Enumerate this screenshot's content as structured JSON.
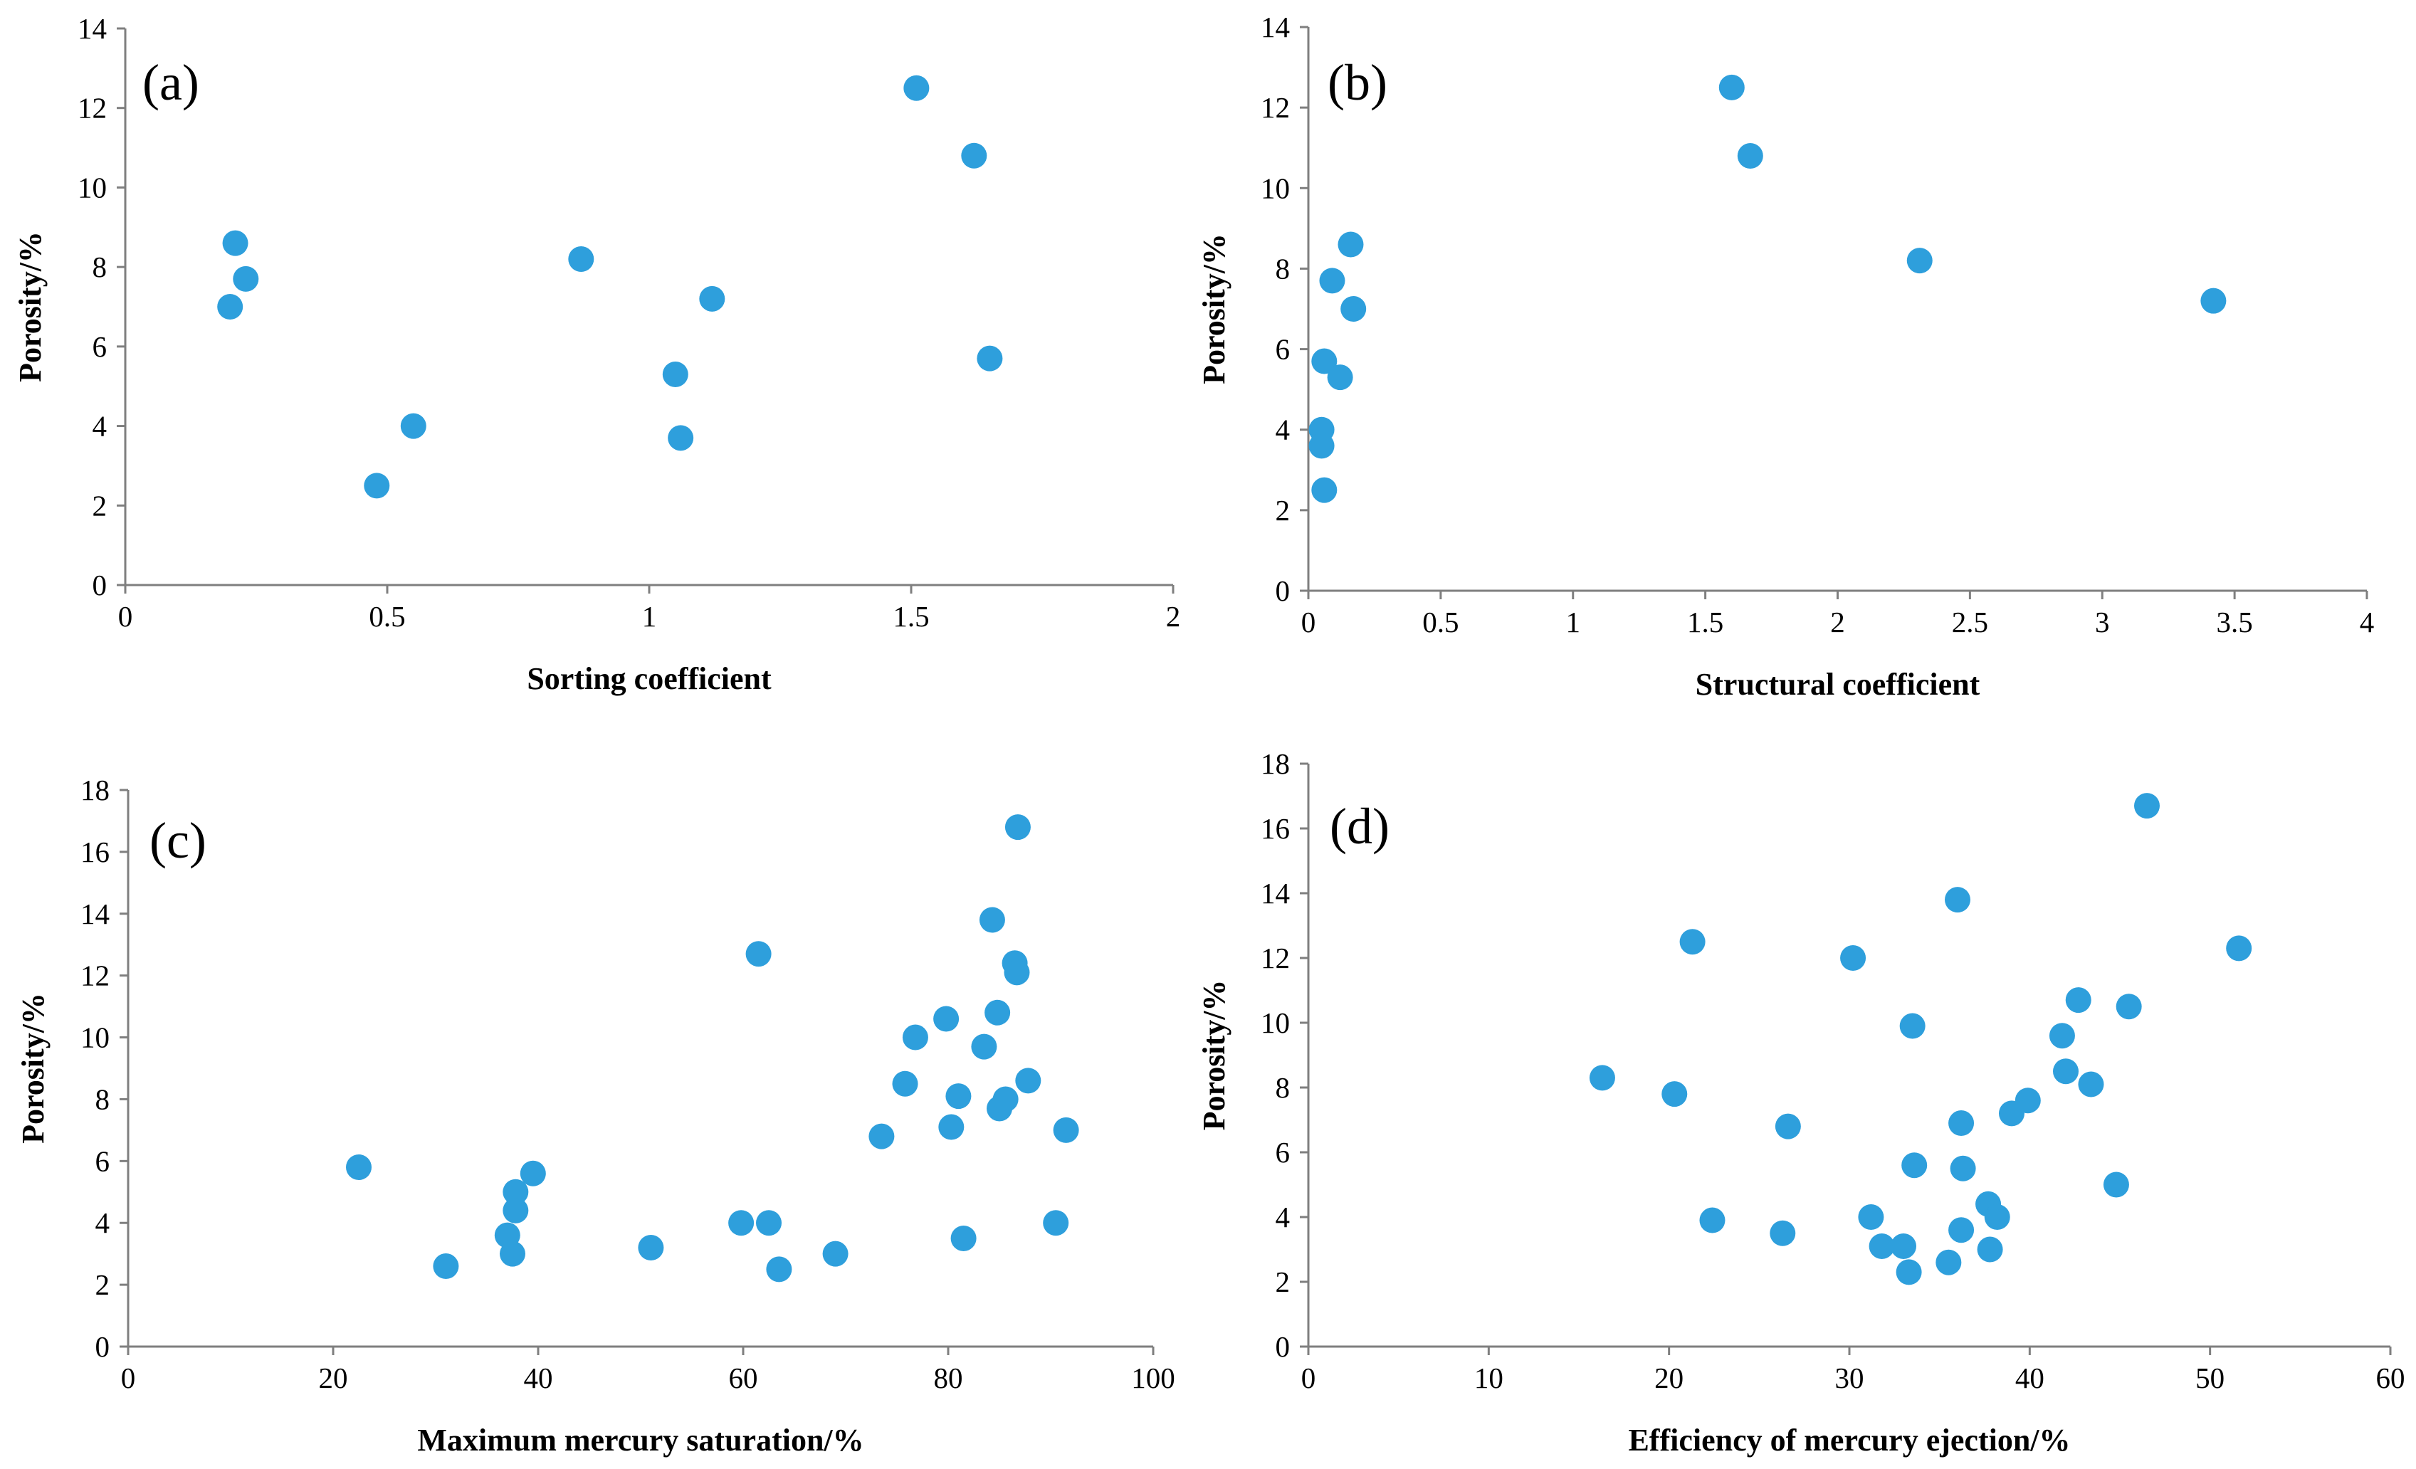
{
  "chart_data": [
    {
      "type": "scatter",
      "panel_label": "(a)",
      "title": "",
      "xlabel": "Sorting coefficient",
      "ylabel": "Porosity/%",
      "xlim": [
        0,
        2
      ],
      "ylim": [
        0,
        14
      ],
      "xticks": [
        0,
        0.5,
        1,
        1.5,
        2
      ],
      "xtick_labels": [
        "0",
        "0.5",
        "1",
        "1.5",
        "2"
      ],
      "yticks": [
        0,
        2,
        4,
        6,
        8,
        10,
        12,
        14
      ],
      "ytick_labels": [
        "0",
        "2",
        "4",
        "6",
        "8",
        "10",
        "12",
        "14"
      ],
      "marker_color": "#2e9fdc",
      "grid": false,
      "legend": "none",
      "points": [
        {
          "x": 0.21,
          "y": 8.6
        },
        {
          "x": 0.23,
          "y": 7.7
        },
        {
          "x": 0.2,
          "y": 7.0
        },
        {
          "x": 0.48,
          "y": 2.5
        },
        {
          "x": 0.55,
          "y": 4.0
        },
        {
          "x": 0.87,
          "y": 8.2
        },
        {
          "x": 1.05,
          "y": 5.3
        },
        {
          "x": 1.06,
          "y": 3.7
        },
        {
          "x": 1.12,
          "y": 7.2
        },
        {
          "x": 1.51,
          "y": 12.5
        },
        {
          "x": 1.62,
          "y": 10.8
        },
        {
          "x": 1.65,
          "y": 5.7
        }
      ]
    },
    {
      "type": "scatter",
      "panel_label": "(b)",
      "title": "",
      "xlabel": "Structural coefficient",
      "ylabel": "Porosity/%",
      "xlim": [
        0,
        4
      ],
      "ylim": [
        0,
        14
      ],
      "xticks": [
        0,
        0.5,
        1,
        1.5,
        2,
        2.5,
        3,
        3.5,
        4
      ],
      "xtick_labels": [
        "0",
        "0.5",
        "1",
        "1.5",
        "2",
        "2.5",
        "3",
        "3.5",
        "4"
      ],
      "yticks": [
        0,
        2,
        4,
        6,
        8,
        10,
        12,
        14
      ],
      "ytick_labels": [
        "0",
        "2",
        "4",
        "6",
        "8",
        "10",
        "12",
        "14"
      ],
      "marker_color": "#2e9fdc",
      "grid": false,
      "legend": "none",
      "points": [
        {
          "x": 1.6,
          "y": 12.5
        },
        {
          "x": 1.67,
          "y": 10.8
        },
        {
          "x": 2.31,
          "y": 8.2
        },
        {
          "x": 3.42,
          "y": 7.2
        },
        {
          "x": 0.16,
          "y": 8.6
        },
        {
          "x": 0.09,
          "y": 7.7
        },
        {
          "x": 0.17,
          "y": 7.0
        },
        {
          "x": 0.06,
          "y": 5.7
        },
        {
          "x": 0.12,
          "y": 5.3
        },
        {
          "x": 0.05,
          "y": 4.0
        },
        {
          "x": 0.05,
          "y": 3.6
        },
        {
          "x": 0.06,
          "y": 2.5
        }
      ]
    },
    {
      "type": "scatter",
      "panel_label": "(c)",
      "title": "",
      "xlabel": "Maximum mercury saturation/%",
      "ylabel": "Porosity/%",
      "xlim": [
        0,
        100
      ],
      "ylim": [
        0,
        18
      ],
      "xticks": [
        0,
        20,
        40,
        60,
        80,
        100
      ],
      "xtick_labels": [
        "0",
        "20",
        "40",
        "60",
        "80",
        "100"
      ],
      "yticks": [
        0,
        2,
        4,
        6,
        8,
        10,
        12,
        14,
        16,
        18
      ],
      "ytick_labels": [
        "0",
        "2",
        "4",
        "6",
        "8",
        "10",
        "12",
        "14",
        "16",
        "18"
      ],
      "marker_color": "#2e9fdc",
      "grid": false,
      "legend": "none",
      "points": [
        {
          "x": 22.5,
          "y": 5.8
        },
        {
          "x": 31,
          "y": 2.6
        },
        {
          "x": 37,
          "y": 3.6
        },
        {
          "x": 37.5,
          "y": 3.0
        },
        {
          "x": 37.8,
          "y": 4.4
        },
        {
          "x": 37.8,
          "y": 5.0
        },
        {
          "x": 39.5,
          "y": 5.6
        },
        {
          "x": 51,
          "y": 3.2
        },
        {
          "x": 59.8,
          "y": 4.0
        },
        {
          "x": 61.5,
          "y": 12.7
        },
        {
          "x": 62.5,
          "y": 4.0
        },
        {
          "x": 63.5,
          "y": 2.5
        },
        {
          "x": 69,
          "y": 3.0
        },
        {
          "x": 73.5,
          "y": 6.8
        },
        {
          "x": 75.8,
          "y": 8.5
        },
        {
          "x": 76.8,
          "y": 10.0
        },
        {
          "x": 79.8,
          "y": 10.6
        },
        {
          "x": 80.3,
          "y": 7.1
        },
        {
          "x": 81,
          "y": 8.1
        },
        {
          "x": 81.5,
          "y": 3.5
        },
        {
          "x": 83.5,
          "y": 9.7
        },
        {
          "x": 84.3,
          "y": 13.8
        },
        {
          "x": 84.8,
          "y": 10.8
        },
        {
          "x": 85,
          "y": 7.7
        },
        {
          "x": 85.6,
          "y": 8.0
        },
        {
          "x": 86.5,
          "y": 12.4
        },
        {
          "x": 86.7,
          "y": 12.1
        },
        {
          "x": 86.8,
          "y": 16.8
        },
        {
          "x": 87.8,
          "y": 8.6
        },
        {
          "x": 90.5,
          "y": 4.0
        },
        {
          "x": 91.5,
          "y": 7.0
        }
      ]
    },
    {
      "type": "scatter",
      "panel_label": "(d)",
      "title": "",
      "xlabel": "Efficiency of mercury ejection/%",
      "ylabel": "Porosity/%",
      "xlim": [
        0,
        60
      ],
      "ylim": [
        0,
        18
      ],
      "xticks": [
        0,
        10,
        20,
        30,
        40,
        50,
        60
      ],
      "xtick_labels": [
        "0",
        "10",
        "20",
        "30",
        "40",
        "50",
        "60"
      ],
      "yticks": [
        0,
        2,
        4,
        6,
        8,
        10,
        12,
        14,
        16,
        18
      ],
      "ytick_labels": [
        "0",
        "2",
        "4",
        "6",
        "8",
        "10",
        "12",
        "14",
        "16",
        "18"
      ],
      "marker_color": "#2e9fdc",
      "grid": false,
      "legend": "none",
      "points": [
        {
          "x": 16.3,
          "y": 8.3
        },
        {
          "x": 20.3,
          "y": 7.8
        },
        {
          "x": 21.3,
          "y": 12.5
        },
        {
          "x": 22.4,
          "y": 3.9
        },
        {
          "x": 26.3,
          "y": 3.5
        },
        {
          "x": 26.6,
          "y": 6.8
        },
        {
          "x": 30.2,
          "y": 12.0
        },
        {
          "x": 31.2,
          "y": 4.0
        },
        {
          "x": 31.8,
          "y": 3.1
        },
        {
          "x": 33,
          "y": 3.1
        },
        {
          "x": 33.3,
          "y": 2.3
        },
        {
          "x": 33.5,
          "y": 9.9
        },
        {
          "x": 33.6,
          "y": 5.6
        },
        {
          "x": 35.5,
          "y": 2.6
        },
        {
          "x": 36,
          "y": 13.8
        },
        {
          "x": 36.2,
          "y": 6.9
        },
        {
          "x": 36.2,
          "y": 3.6
        },
        {
          "x": 36.3,
          "y": 5.5
        },
        {
          "x": 37.7,
          "y": 4.4
        },
        {
          "x": 37.8,
          "y": 3.0
        },
        {
          "x": 38.2,
          "y": 4.0
        },
        {
          "x": 39,
          "y": 7.2
        },
        {
          "x": 39.9,
          "y": 7.6
        },
        {
          "x": 41.8,
          "y": 9.6
        },
        {
          "x": 42,
          "y": 8.5
        },
        {
          "x": 42.7,
          "y": 10.7
        },
        {
          "x": 43.4,
          "y": 8.1
        },
        {
          "x": 44.8,
          "y": 5.0
        },
        {
          "x": 45.5,
          "y": 10.5
        },
        {
          "x": 46.5,
          "y": 16.7
        },
        {
          "x": 51.6,
          "y": 12.3
        }
      ]
    }
  ]
}
